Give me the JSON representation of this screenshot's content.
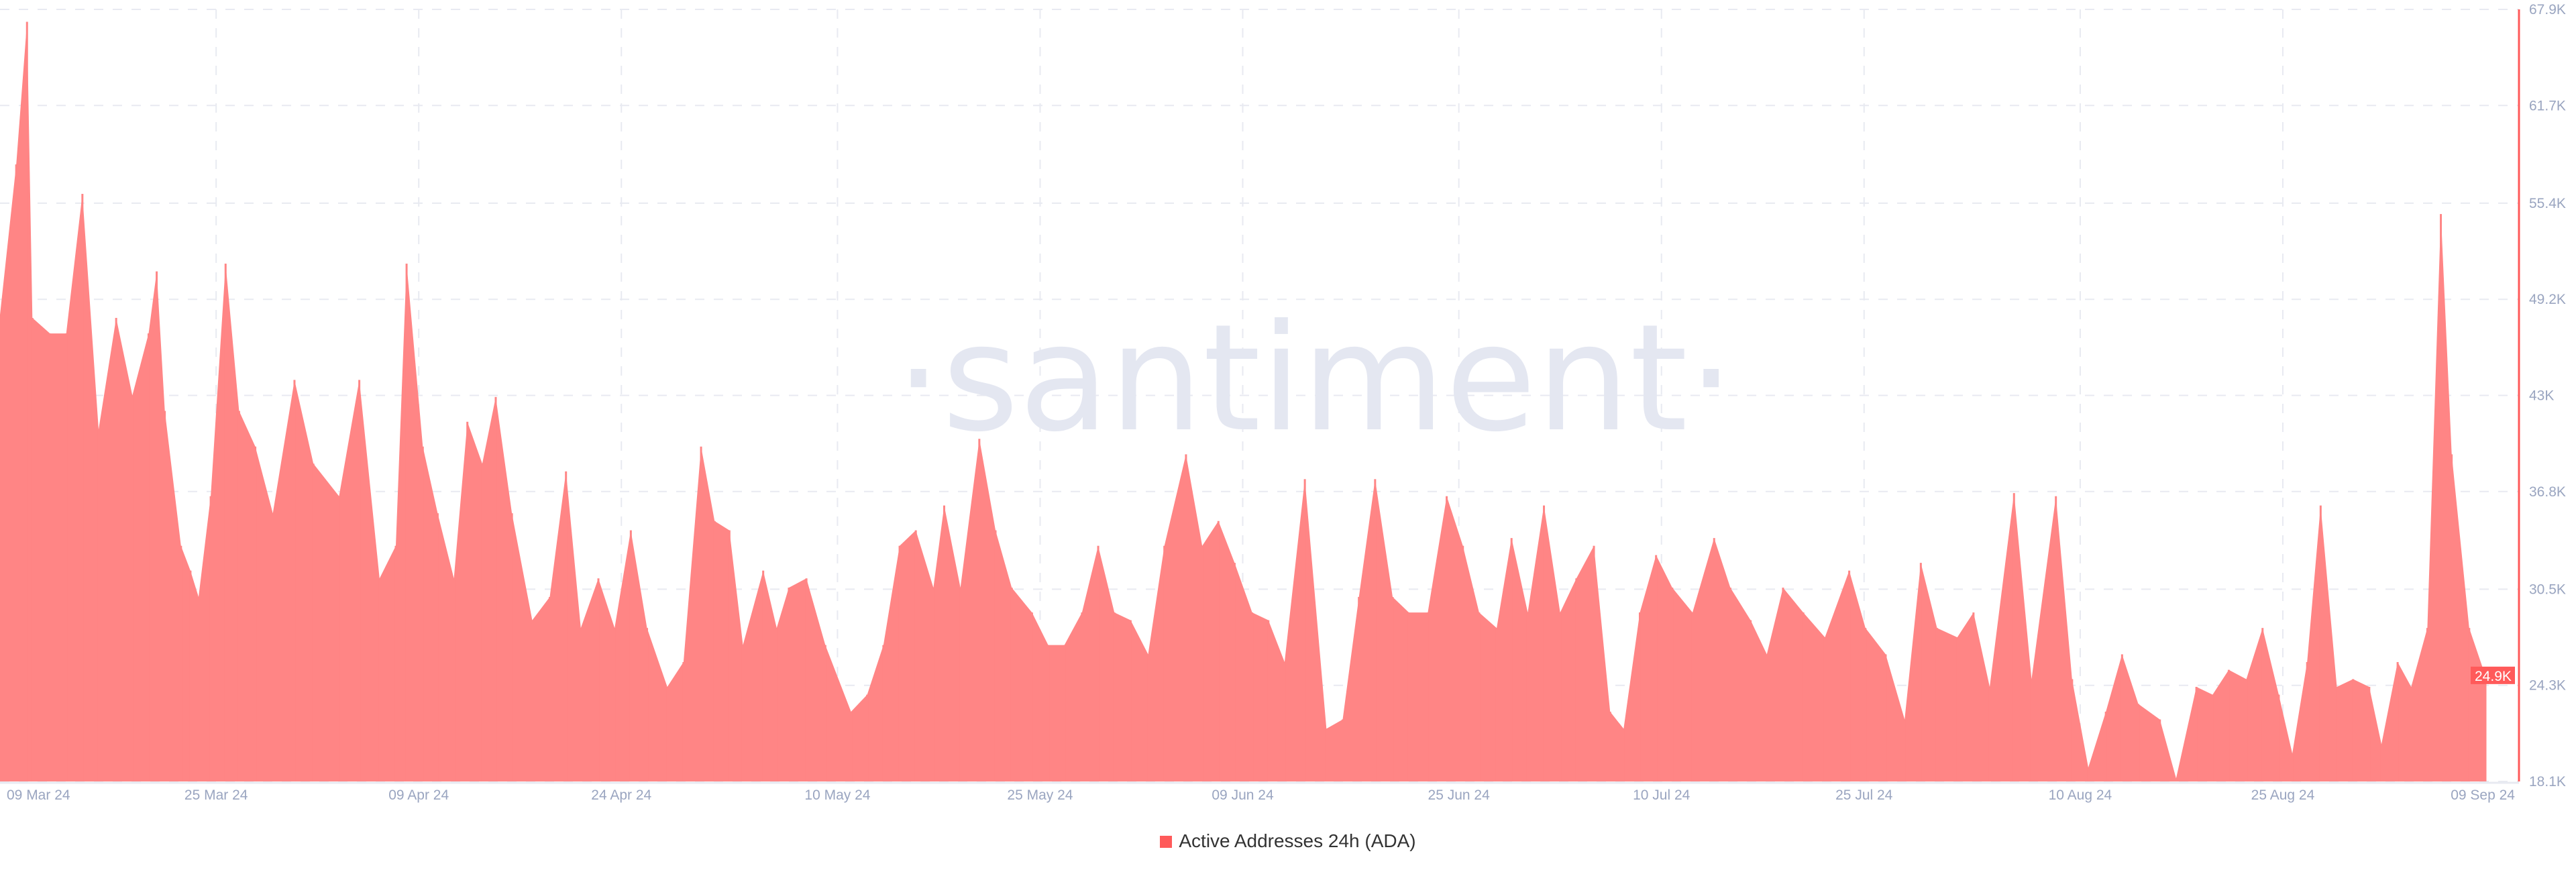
{
  "watermark": "·santiment·",
  "legend": {
    "label": "Active Addresses 24h (ADA)"
  },
  "colors": {
    "series": "#ff8585",
    "axis": "#ff5a5a",
    "grid": "#e8eaf1",
    "tick_text": "#9aa5c0",
    "watermark": "#e4e7f1"
  },
  "chart_data": {
    "type": "bar",
    "title": "",
    "xlabel": "",
    "ylabel": "",
    "series_name": "Active Addresses 24h (ADA)",
    "x_unit": "days since 09 Mar 24",
    "xlim": [
      0,
      184
    ],
    "ylim": [
      18.1,
      67.9
    ],
    "y_unit": "thousand addresses",
    "grid": true,
    "legend_position": "bottom-center",
    "x_ticks": [
      {
        "day": 0,
        "label": "09 Mar 24"
      },
      {
        "day": 16,
        "label": "25 Mar 24"
      },
      {
        "day": 31,
        "label": "09 Apr 24"
      },
      {
        "day": 46,
        "label": "24 Apr 24"
      },
      {
        "day": 62,
        "label": "10 May 24"
      },
      {
        "day": 77,
        "label": "25 May 24"
      },
      {
        "day": 92,
        "label": "09 Jun 24"
      },
      {
        "day": 108,
        "label": "25 Jun 24"
      },
      {
        "day": 123,
        "label": "10 Jul 24"
      },
      {
        "day": 138,
        "label": "25 Jul 24"
      },
      {
        "day": 154,
        "label": "10 Aug 24"
      },
      {
        "day": 169,
        "label": "25 Aug 24"
      },
      {
        "day": 184,
        "label": "09 Sep 24"
      }
    ],
    "y_ticks": [
      {
        "value": 67.9,
        "label": "67.9K"
      },
      {
        "value": 61.7,
        "label": "61.7K"
      },
      {
        "value": 55.4,
        "label": "55.4K"
      },
      {
        "value": 49.2,
        "label": "49.2K"
      },
      {
        "value": 43.0,
        "label": "43K"
      },
      {
        "value": 36.8,
        "label": "36.8K"
      },
      {
        "value": 30.5,
        "label": "30.5K"
      },
      {
        "value": 24.3,
        "label": "24.3K"
      },
      {
        "value": 18.1,
        "label": "18.1K"
      }
    ],
    "current_value": {
      "value": 24.9,
      "label": "24.9K"
    },
    "days": [
      0,
      1.2,
      2.0,
      2.4,
      3.7,
      4.9,
      6.1,
      7.3,
      8.6,
      9.8,
      11.0,
      11.6,
      12.2,
      13.4,
      14.1,
      14.7,
      15.6,
      16.7,
      17.7,
      18.9,
      20.2,
      21.8,
      23.2,
      25.1,
      26.6,
      28.1,
      29.3,
      30.1,
      31.3,
      32.4,
      33.6,
      34.6,
      35.7,
      36.7,
      37.9,
      39.4,
      40.7,
      41.9,
      43.0,
      44.3,
      45.5,
      46.7,
      47.9,
      49.4,
      50.6,
      51.9,
      52.9,
      54.0,
      55.0,
      56.5,
      57.5,
      58.4,
      59.7,
      61.1,
      63.0,
      64.2,
      65.4,
      66.6,
      67.8,
      69.1,
      69.9,
      71.1,
      72.5,
      73.7,
      74.9,
      76.4,
      77.6,
      78.8,
      80.1,
      81.3,
      82.5,
      83.7,
      85.0,
      86.2,
      87.8,
      89.0,
      90.2,
      91.4,
      92.7,
      93.9,
      95.1,
      96.6,
      98.2,
      99.4,
      100.6,
      101.8,
      103.1,
      104.3,
      105.7,
      107.1,
      108.3,
      109.5,
      110.8,
      111.9,
      113.1,
      114.3,
      115.5,
      116.7,
      118.0,
      119.2,
      120.2,
      121.4,
      122.6,
      123.8,
      125.3,
      126.9,
      128.1,
      129.6,
      130.8,
      132.0,
      133.5,
      135.1,
      136.9,
      138.1,
      139.6,
      141.0,
      142.2,
      143.4,
      144.9,
      146.1,
      147.3,
      149.1,
      150.4,
      152.2,
      153.4,
      154.6,
      155.9,
      157.1,
      158.3,
      159.9,
      161.1,
      162.6,
      163.8,
      165.0,
      166.3,
      167.5,
      168.7,
      169.7,
      170.8,
      171.8,
      173.0,
      174.2,
      175.4,
      176.3,
      177.5,
      178.5,
      179.7,
      180.7,
      181.5,
      182.8,
      184.0
    ],
    "values": [
      48.2,
      57.9,
      67.1,
      48,
      47,
      47,
      56,
      40.8,
      48,
      43,
      47,
      51,
      42,
      33.3,
      31.7,
      30,
      36.5,
      51.5,
      42,
      39.7,
      35.4,
      44,
      38.6,
      36.5,
      44,
      31.2,
      33.3,
      51.5,
      39.7,
      35.4,
      31.2,
      41.3,
      38.6,
      42.9,
      35.4,
      28.5,
      30,
      38.1,
      28,
      31.2,
      28,
      34.3,
      28,
      24.2,
      25.8,
      39.7,
      34.9,
      34.3,
      26.9,
      31.7,
      28,
      30.6,
      31.2,
      26.9,
      22.6,
      23.7,
      26.9,
      33.3,
      34.3,
      30.6,
      35.9,
      30.6,
      40.2,
      34.3,
      30.6,
      29,
      26.9,
      26.9,
      29,
      33.3,
      29,
      28.5,
      26.3,
      33.3,
      39.2,
      33.3,
      34.9,
      32.2,
      29,
      28.5,
      25.8,
      37.6,
      21.5,
      22.1,
      30,
      37.6,
      30,
      29,
      29,
      36.5,
      33.3,
      29,
      28,
      33.8,
      29,
      35.9,
      29,
      31.2,
      33.3,
      22.6,
      21.5,
      29,
      32.7,
      30.6,
      29,
      33.8,
      30.6,
      28.5,
      26.3,
      30.6,
      29,
      27.4,
      31.7,
      28,
      26.3,
      22.1,
      32.2,
      28,
      27.4,
      29,
      24.2,
      36.7,
      24.7,
      36.5,
      24.7,
      19,
      22.6,
      26.3,
      23.1,
      22.1,
      18.3,
      24.2,
      23.7,
      25.3,
      24.7,
      28,
      23.7,
      19.9,
      25.8,
      35.9,
      24.2,
      24.7,
      24.2,
      20.5,
      25.8,
      24.2,
      28,
      54.7,
      39.2,
      28,
      24.9
    ]
  }
}
